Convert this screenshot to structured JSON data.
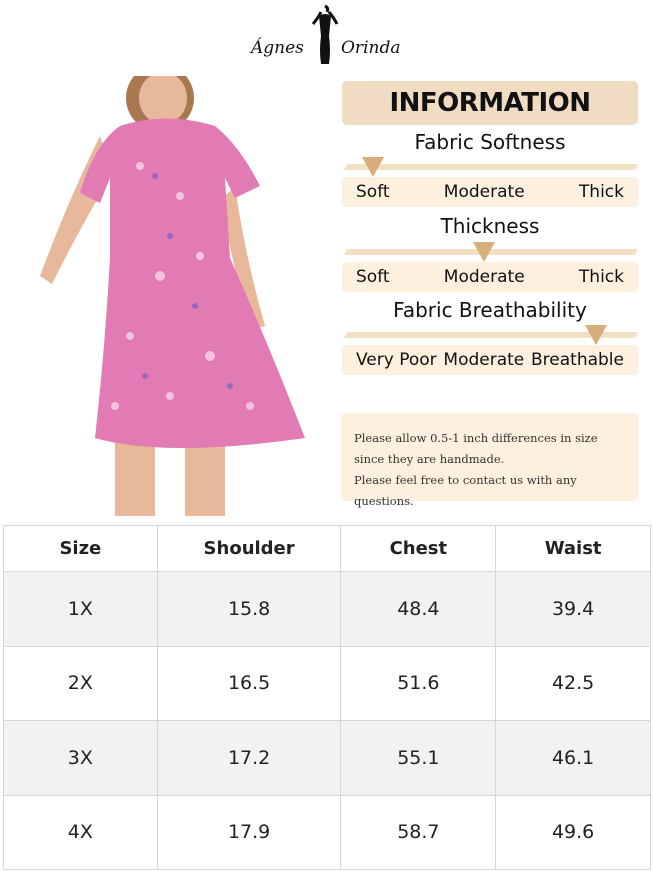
{
  "brand": {
    "left": "Ágnes",
    "right": "Orinda"
  },
  "info": {
    "title": "INFORMATION",
    "scales": [
      {
        "title": "Fabric Softness",
        "labels": [
          "Soft",
          "Moderate",
          "Thick"
        ],
        "selected": "Soft",
        "level": 0.0
      },
      {
        "title": "Thickness",
        "labels": [
          "Soft",
          "Moderate",
          "Thick"
        ],
        "selected": "Moderate",
        "level": 0.5
      },
      {
        "title": "Fabric Breathability",
        "labels": [
          "Very Poor",
          "Moderate",
          "Breathable"
        ],
        "selected": "Breathable",
        "level": 1.0
      }
    ],
    "note": [
      "Please allow 0.5-1 inch differences in size",
      "since they are handmade.",
      "Please feel free to contact us with any questions."
    ]
  },
  "colors": {
    "header_bg": "#f0dcc2",
    "bar": "#f3dfc4",
    "marker": "#d8ae7c",
    "label_bg": "#fdf0de",
    "dress": "#e27bb4"
  },
  "table": {
    "headers": [
      "Size",
      "Shoulder",
      "Chest",
      "Waist"
    ],
    "rows": [
      [
        "1X",
        "15.8",
        "48.4",
        "39.4"
      ],
      [
        "2X",
        "16.5",
        "51.6",
        "42.5"
      ],
      [
        "3X",
        "17.2",
        "55.1",
        "46.1"
      ],
      [
        "4X",
        "17.9",
        "58.7",
        "49.6"
      ]
    ]
  }
}
